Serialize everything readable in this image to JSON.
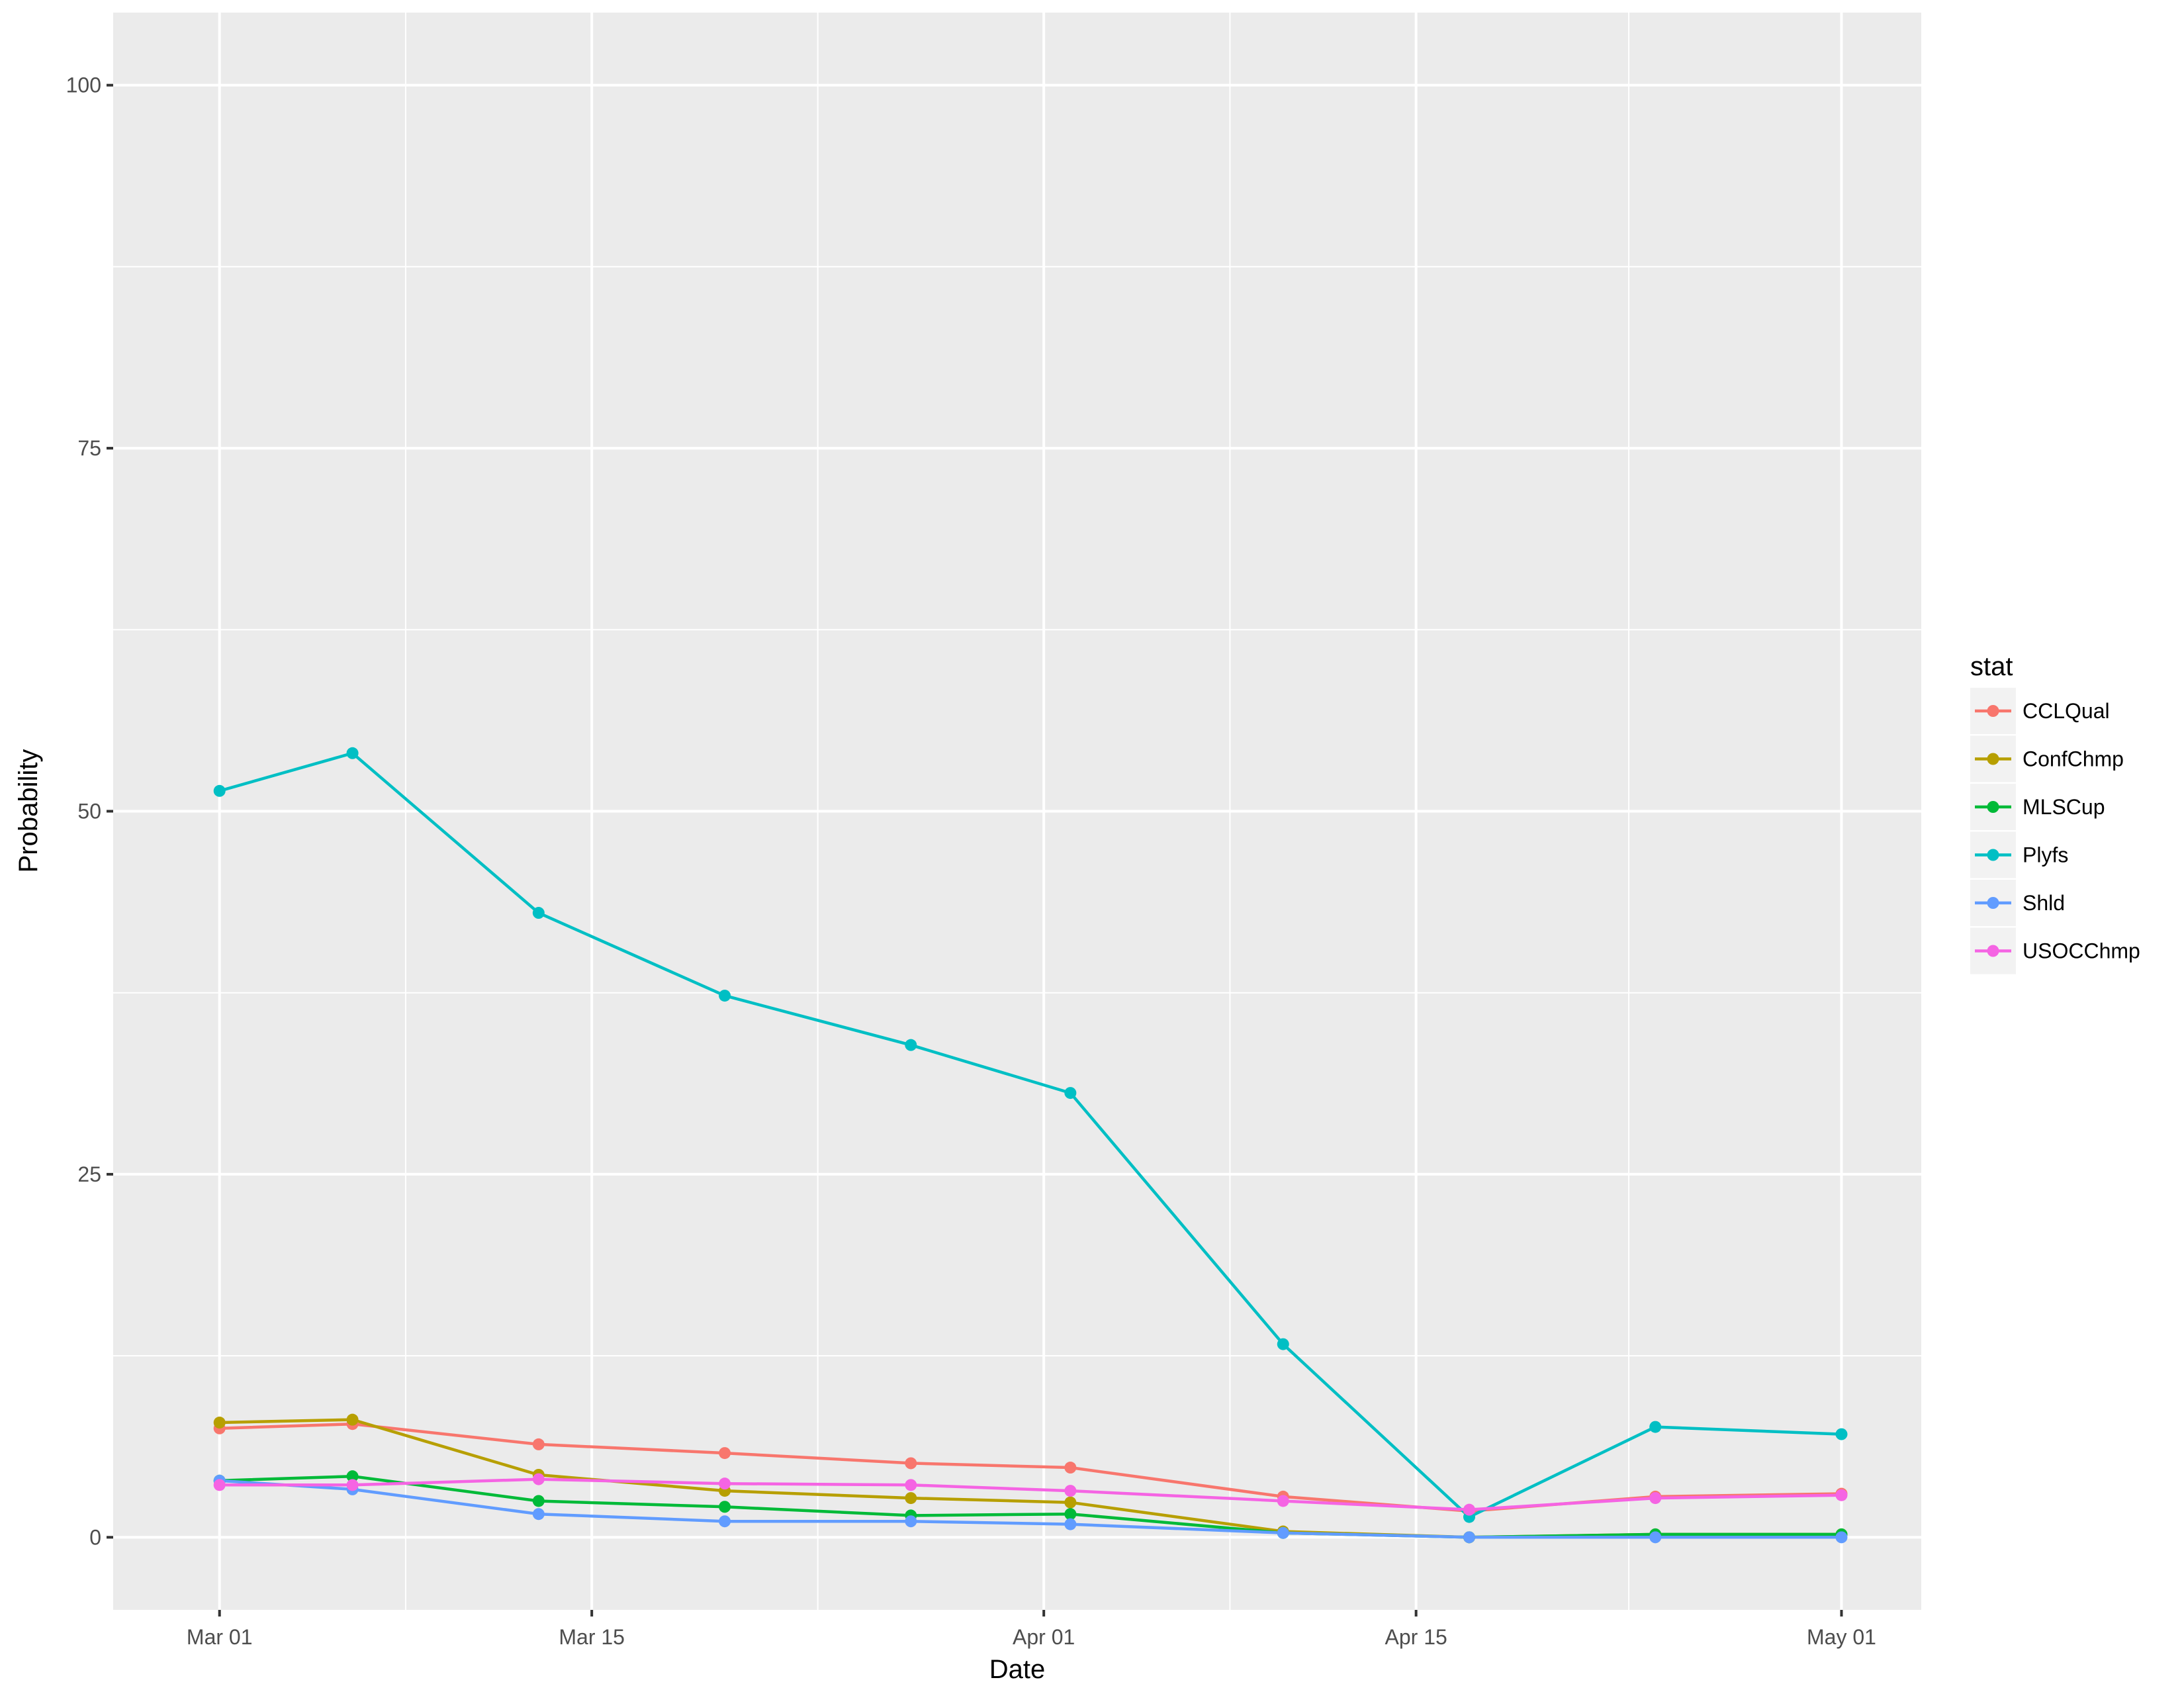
{
  "chart_data": {
    "type": "line",
    "title": "",
    "xlabel": "Date",
    "ylabel": "Probability",
    "x_type": "date",
    "xlim": [
      "2016-02-26",
      "2016-05-04"
    ],
    "ylim": [
      -5,
      105
    ],
    "x_ticks": [
      {
        "date": "2016-03-01",
        "label": "Mar 01"
      },
      {
        "date": "2016-03-15",
        "label": "Mar 15"
      },
      {
        "date": "2016-04-01",
        "label": "Apr 01"
      },
      {
        "date": "2016-04-15",
        "label": "Apr 15"
      },
      {
        "date": "2016-05-01",
        "label": "May 01"
      }
    ],
    "y_ticks": [
      0,
      25,
      50,
      75,
      100
    ],
    "grid": true,
    "legend": {
      "title": "stat",
      "position": "right"
    },
    "x": [
      "2016-03-01",
      "2016-03-06",
      "2016-03-13",
      "2016-03-20",
      "2016-03-27",
      "2016-04-02",
      "2016-04-10",
      "2016-04-17",
      "2016-04-24",
      "2016-05-01"
    ],
    "series": [
      {
        "name": "CCLQual",
        "color": "#F8766D",
        "values": [
          7.5,
          7.8,
          6.4,
          5.8,
          5.1,
          4.8,
          2.8,
          1.8,
          2.8,
          3.0
        ]
      },
      {
        "name": "ConfChmp",
        "color": "#B79F00",
        "values": [
          7.9,
          8.1,
          4.3,
          3.2,
          2.7,
          2.4,
          0.4,
          0.0,
          0.2,
          0.2
        ]
      },
      {
        "name": "MLSCup",
        "color": "#00BA38",
        "values": [
          3.9,
          4.2,
          2.5,
          2.1,
          1.5,
          1.6,
          0.3,
          0.0,
          0.2,
          0.2
        ]
      },
      {
        "name": "Plyfs",
        "color": "#00BFC4",
        "values": [
          51.4,
          54.0,
          43.0,
          37.3,
          33.9,
          30.6,
          13.3,
          1.4,
          7.6,
          7.1
        ]
      },
      {
        "name": "Shld",
        "color": "#619CFF",
        "values": [
          3.9,
          3.3,
          1.6,
          1.1,
          1.1,
          0.9,
          0.3,
          0.0,
          0.0,
          0.0
        ]
      },
      {
        "name": "USOCChmp",
        "color": "#F564E3",
        "values": [
          3.6,
          3.6,
          4.0,
          3.7,
          3.6,
          3.2,
          2.5,
          1.9,
          2.7,
          2.9
        ]
      }
    ]
  },
  "colors": {
    "panel_bg": "#EBEBEB",
    "grid_major": "#FFFFFF",
    "legend_key_bg": "#F2F2F2"
  }
}
